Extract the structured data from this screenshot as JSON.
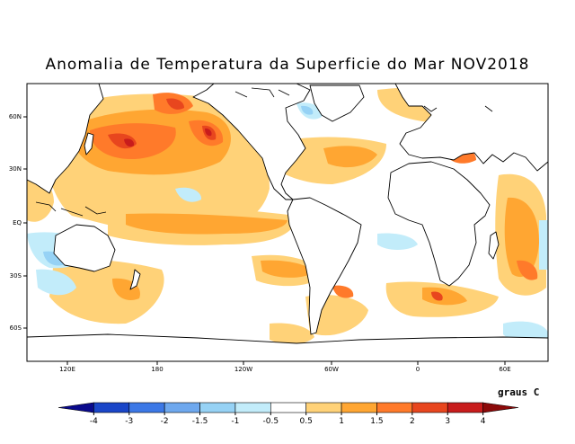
{
  "title": "Anomalia de Temperatura da Superficie do Mar NOV2018",
  "units": "graus C",
  "lat_labels": [
    "60N",
    "30N",
    "EQ",
    "30S",
    "60S"
  ],
  "lon_labels": [
    "120E",
    "180",
    "120W",
    "60W",
    "0",
    "60E"
  ],
  "colorbar": {
    "labels": [
      "-4",
      "-3",
      "-2",
      "-1.5",
      "-1",
      "-0.5",
      "0.5",
      "1",
      "1.5",
      "2",
      "3",
      "4"
    ],
    "colors": [
      "#0a0a8c",
      "#1a46c8",
      "#3c78e6",
      "#6ea8ee",
      "#96d2f5",
      "#c2ecfa",
      "#ffffff",
      "#ffd278",
      "#ffa632",
      "#ff7a2a",
      "#e8461e",
      "#c81c1c",
      "#8c0a0a"
    ]
  },
  "chart_data": {
    "type": "heatmap",
    "title": "Anomalia de Temperatura da Superficie do Mar NOV2018",
    "variable": "sea surface temperature anomaly",
    "units": "graus C",
    "lat_ticks": [
      "60N",
      "30N",
      "EQ",
      "30S",
      "60S"
    ],
    "lon_ticks": [
      "120E",
      "180",
      "120W",
      "60W",
      "0",
      "60E"
    ],
    "color_levels": [
      -4,
      -3,
      -2,
      -1.5,
      -1,
      -0.5,
      0.5,
      1,
      1.5,
      2,
      3,
      4
    ]
  }
}
